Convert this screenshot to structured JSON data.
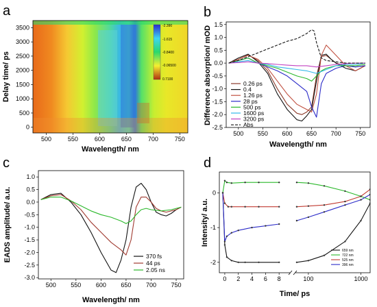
{
  "chart_data": [
    {
      "panel": "a",
      "type": "heatmap",
      "xlabel": "Wavelength/ nm",
      "ylabel": "Delay time/ ps",
      "xlim": [
        475,
        765
      ],
      "ylim": [
        -200,
        3750
      ],
      "xticks": [
        500,
        550,
        600,
        650,
        700,
        750
      ],
      "yticks": [
        0,
        500,
        1000,
        1500,
        2000,
        2500,
        3000,
        3500
      ],
      "colorbar": {
        "labels": [
          "-2.390",
          "-1.615",
          "-0.8400",
          "-0.06500",
          "0.7100"
        ],
        "colors": [
          "#2a2ad0",
          "#3fd6f0",
          "#2bd86a",
          "#f5f030",
          "#b03010"
        ]
      }
    },
    {
      "panel": "b",
      "type": "line",
      "xlabel": "Wavelength/ nm",
      "ylabel": "Difference absorption/ mOD",
      "xlim": [
        475,
        770
      ],
      "ylim": [
        -2.5,
        1.6
      ],
      "xticks": [
        500,
        550,
        600,
        650,
        700,
        750
      ],
      "yticks": [
        -2.5,
        -2.0,
        -1.5,
        -1.0,
        -0.5,
        0.0,
        0.5,
        1.0,
        1.5
      ],
      "legend_position": "lower-left",
      "series": [
        {
          "name": "0.26 ps",
          "color": "#8b3a2a",
          "x": [
            480,
            500,
            520,
            540,
            560,
            580,
            600,
            620,
            630,
            640,
            650,
            660,
            670,
            680,
            690,
            700,
            720,
            740,
            760
          ],
          "y": [
            0.0,
            0.15,
            0.32,
            0.1,
            -0.3,
            -1.0,
            -1.6,
            -1.95,
            -2.0,
            -1.9,
            -1.7,
            -0.5,
            0.25,
            0.3,
            0.15,
            0.0,
            -0.1,
            -0.15,
            -0.1
          ]
        },
        {
          "name": "0.4",
          "color": "#111111",
          "x": [
            480,
            500,
            520,
            540,
            560,
            580,
            600,
            620,
            630,
            640,
            650,
            660,
            670,
            680,
            690,
            700,
            720,
            740,
            760
          ],
          "y": [
            0.0,
            0.2,
            0.35,
            0.05,
            -0.4,
            -1.2,
            -1.8,
            -2.2,
            -2.25,
            -2.05,
            -1.8,
            -0.7,
            0.3,
            0.35,
            0.15,
            0.0,
            -0.2,
            -0.3,
            -0.1
          ]
        },
        {
          "name": "1.26 ps",
          "color": "#c05040",
          "x": [
            480,
            500,
            520,
            540,
            560,
            580,
            600,
            620,
            630,
            640,
            650,
            660,
            670,
            680,
            690,
            700,
            720,
            740,
            760
          ],
          "y": [
            0.0,
            0.15,
            0.3,
            0.15,
            -0.2,
            -0.7,
            -1.2,
            -1.6,
            -1.7,
            -1.8,
            -1.9,
            -1.2,
            0.3,
            0.7,
            0.5,
            0.3,
            -0.1,
            -0.3,
            -0.1
          ]
        },
        {
          "name": "28 ps",
          "color": "#2a2ac8",
          "x": [
            480,
            500,
            520,
            540,
            560,
            580,
            600,
            620,
            640,
            650,
            660,
            670,
            680,
            700,
            720,
            740,
            760
          ],
          "y": [
            0.0,
            0.1,
            0.2,
            0.0,
            -0.15,
            -0.3,
            -0.5,
            -0.8,
            -1.1,
            -1.7,
            -2.1,
            -0.8,
            -0.4,
            -0.2,
            -0.1,
            -0.15,
            -0.1
          ]
        },
        {
          "name": "500 ps",
          "color": "#2ab82a",
          "x": [
            480,
            500,
            520,
            540,
            560,
            580,
            600,
            620,
            640,
            650,
            660,
            670,
            680,
            700,
            720,
            740,
            760
          ],
          "y": [
            0.0,
            0.1,
            0.2,
            0.0,
            -0.1,
            -0.2,
            -0.35,
            -0.5,
            -0.6,
            -0.7,
            -0.5,
            -0.3,
            -0.2,
            -0.1,
            -0.1,
            -0.1,
            -0.05
          ]
        },
        {
          "name": "1600 ps",
          "color": "#30b8e8",
          "x": [
            480,
            500,
            520,
            540,
            560,
            580,
            600,
            620,
            640,
            660,
            680,
            700,
            720,
            740,
            760
          ],
          "y": [
            0.0,
            0.05,
            0.1,
            0.0,
            -0.05,
            -0.15,
            -0.2,
            -0.25,
            -0.3,
            -0.4,
            -0.25,
            -0.1,
            -0.05,
            -0.05,
            0.0
          ]
        },
        {
          "name": "3200 ps",
          "color": "#c040c0",
          "x": [
            480,
            500,
            520,
            540,
            560,
            580,
            600,
            620,
            640,
            660,
            680,
            700,
            720,
            740,
            760
          ],
          "y": [
            0.0,
            0.02,
            0.05,
            0.0,
            -0.02,
            -0.05,
            -0.08,
            -0.1,
            -0.1,
            -0.15,
            -0.1,
            -0.05,
            -0.02,
            0.0,
            0.0
          ]
        },
        {
          "name": "Abs",
          "color": "#111111",
          "dashed": true,
          "x": [
            480,
            500,
            520,
            540,
            560,
            580,
            600,
            620,
            640,
            650,
            655,
            660,
            670,
            680,
            700,
            720,
            740,
            760
          ],
          "y": [
            0.0,
            0.1,
            0.25,
            0.4,
            0.55,
            0.7,
            0.85,
            0.95,
            1.15,
            1.3,
            1.25,
            0.8,
            0.2,
            0.1,
            0.05,
            0.0,
            0.0,
            0.0
          ]
        }
      ]
    },
    {
      "panel": "c",
      "type": "line",
      "xlabel": "Wavelength/ nm",
      "ylabel": "EADS amplitude/ a.u.",
      "xlim": [
        475,
        765
      ],
      "ylim": [
        -3.05,
        1.25
      ],
      "xticks": [
        500,
        550,
        600,
        650,
        700,
        750
      ],
      "yticks": [
        -3.0,
        -2.5,
        -2.0,
        -1.5,
        -1.0,
        -0.5,
        0.0,
        0.5,
        1.0
      ],
      "legend_position": "lower-right",
      "series": [
        {
          "name": "370 fs",
          "color": "#111111",
          "x": [
            480,
            500,
            520,
            540,
            560,
            580,
            600,
            620,
            630,
            640,
            650,
            660,
            670,
            680,
            690,
            700,
            710,
            720,
            730,
            740,
            750,
            760
          ],
          "y": [
            0.1,
            0.3,
            0.35,
            0.0,
            -0.5,
            -1.2,
            -2.0,
            -2.7,
            -2.8,
            -2.3,
            -1.5,
            -0.2,
            0.6,
            0.75,
            0.5,
            0.0,
            -0.4,
            -0.5,
            -0.55,
            -0.45,
            -0.3,
            -0.2
          ]
        },
        {
          "name": "44 ps",
          "color": "#a03a30",
          "x": [
            480,
            500,
            520,
            540,
            560,
            580,
            600,
            620,
            640,
            650,
            660,
            670,
            680,
            690,
            700,
            710,
            720,
            730,
            740,
            750,
            760
          ],
          "y": [
            0.1,
            0.25,
            0.3,
            0.05,
            -0.3,
            -0.8,
            -1.2,
            -1.6,
            -1.9,
            -2.1,
            -1.5,
            -0.2,
            0.2,
            0.2,
            0.0,
            -0.25,
            -0.35,
            -0.4,
            -0.35,
            -0.3,
            -0.2
          ]
        },
        {
          "name": "2.05 ns",
          "color": "#2ab82a",
          "x": [
            480,
            500,
            520,
            540,
            560,
            580,
            600,
            620,
            640,
            650,
            660,
            670,
            680,
            690,
            700,
            720,
            740,
            760
          ],
          "y": [
            0.1,
            0.2,
            0.2,
            0.05,
            -0.15,
            -0.35,
            -0.5,
            -0.6,
            -0.75,
            -0.85,
            -0.75,
            -0.5,
            -0.3,
            -0.25,
            -0.3,
            -0.35,
            -0.3,
            -0.2
          ]
        }
      ]
    },
    {
      "panel": "d",
      "type": "scatter",
      "xlabel": "Time/ ps",
      "ylabel": "Intensity/ a.u.",
      "xscale": "linear then log",
      "xlim": [
        -0.8,
        1500
      ],
      "ylim": [
        -2.3,
        0.6
      ],
      "xticks": [
        0,
        2,
        4,
        6,
        8,
        100,
        1000
      ],
      "yticks": [
        -2,
        -1,
        0
      ],
      "legend_position": "bottom-right",
      "series": [
        {
          "name": "659 nm",
          "color": "#111111",
          "x": [
            -0.3,
            0.0,
            0.3,
            1,
            2,
            3,
            5,
            8,
            60,
            100,
            200,
            500,
            1000,
            1500
          ],
          "y": [
            0.0,
            -1.5,
            -1.85,
            -1.95,
            -2.0,
            -2.0,
            -2.0,
            -2.0,
            -2.0,
            -1.95,
            -1.8,
            -1.4,
            -0.8,
            -0.3
          ]
        },
        {
          "name": "722 nm",
          "color": "#2ab82a",
          "x": [
            -0.3,
            0.0,
            0.3,
            1,
            3,
            5,
            8,
            60,
            100,
            200,
            500,
            1000,
            1500
          ],
          "y": [
            0.0,
            0.35,
            0.3,
            0.28,
            0.3,
            0.3,
            0.3,
            0.3,
            0.28,
            0.2,
            0.05,
            -0.1,
            -0.2
          ]
        },
        {
          "name": "525 nm",
          "color": "#c03a30",
          "x": [
            -0.3,
            0.0,
            0.5,
            1,
            3,
            5,
            8,
            60,
            100,
            200,
            500,
            1000,
            1500
          ],
          "y": [
            0.0,
            -0.3,
            -0.4,
            -0.4,
            -0.4,
            -0.4,
            -0.4,
            -0.4,
            -0.38,
            -0.35,
            -0.25,
            -0.1,
            0.1
          ]
        },
        {
          "name": "396 nm",
          "color": "#2a2ac8",
          "x": [
            -0.3,
            0.0,
            0.3,
            1,
            2,
            4,
            6,
            8,
            60,
            100,
            200,
            500,
            1000,
            1500
          ],
          "y": [
            0.0,
            -1.4,
            -1.25,
            -1.15,
            -1.08,
            -1.0,
            -0.95,
            -0.9,
            -0.8,
            -0.7,
            -0.55,
            -0.35,
            -0.2,
            -0.05
          ]
        }
      ]
    }
  ]
}
